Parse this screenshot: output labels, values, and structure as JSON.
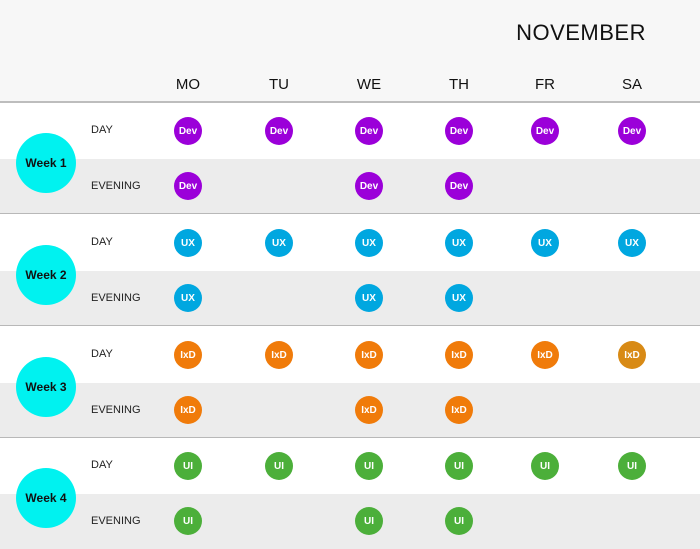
{
  "month": "NOVEMBER",
  "days": [
    "MO",
    "TU",
    "WE",
    "TH",
    "FR",
    "SA"
  ],
  "row_labels": {
    "day": "DAY",
    "evening": "EVENING"
  },
  "weeks": [
    {
      "label": "Week 1",
      "course": "Dev",
      "color": "#9b00d9",
      "day": [
        1,
        1,
        1,
        1,
        1,
        1
      ],
      "evening": [
        1,
        0,
        1,
        1,
        0,
        0
      ]
    },
    {
      "label": "Week 2",
      "course": "UX",
      "color": "#00a7e0",
      "day": [
        1,
        1,
        1,
        1,
        1,
        1
      ],
      "evening": [
        1,
        0,
        1,
        1,
        0,
        0
      ]
    },
    {
      "label": "Week 3",
      "course": "IxD",
      "color": "#f07b0a",
      "color_alt": "#d88a15",
      "day": [
        1,
        1,
        1,
        1,
        1,
        1
      ],
      "evening": [
        1,
        0,
        1,
        1,
        0,
        0
      ]
    },
    {
      "label": "Week 4",
      "course": "UI",
      "color": "#4caf3a",
      "day": [
        1,
        1,
        1,
        1,
        1,
        1
      ],
      "evening": [
        1,
        0,
        1,
        1,
        0,
        0
      ]
    }
  ]
}
